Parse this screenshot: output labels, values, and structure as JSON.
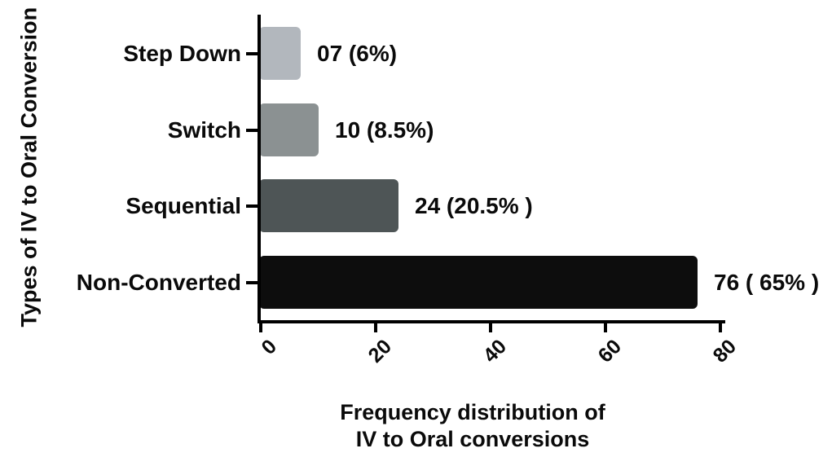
{
  "chart_data": {
    "type": "bar",
    "orientation": "horizontal",
    "title": "",
    "ylabel": "Types of IV to Oral Conversion",
    "xlabel_line1": "Frequency distribution of",
    "xlabel_line2": "IV to Oral conversions",
    "categories": [
      "Step Down",
      "Switch",
      "Sequential",
      "Non-Converted"
    ],
    "values": [
      7,
      10,
      24,
      76
    ],
    "value_labels": [
      "07 (6%)",
      "10 (8.5%)",
      "24 (20.5% )",
      "76 ( 65% )"
    ],
    "bar_colors": [
      "#b2b7bd",
      "#8b9192",
      "#4e5556",
      "#0d0d0d"
    ],
    "x_ticks": [
      0,
      20,
      40,
      60,
      80
    ],
    "xlim": [
      0,
      80
    ],
    "grid": false,
    "legend": false
  },
  "colors": {
    "background": "#ffffff",
    "axis": "#000000",
    "text": "#0a0a0a"
  }
}
